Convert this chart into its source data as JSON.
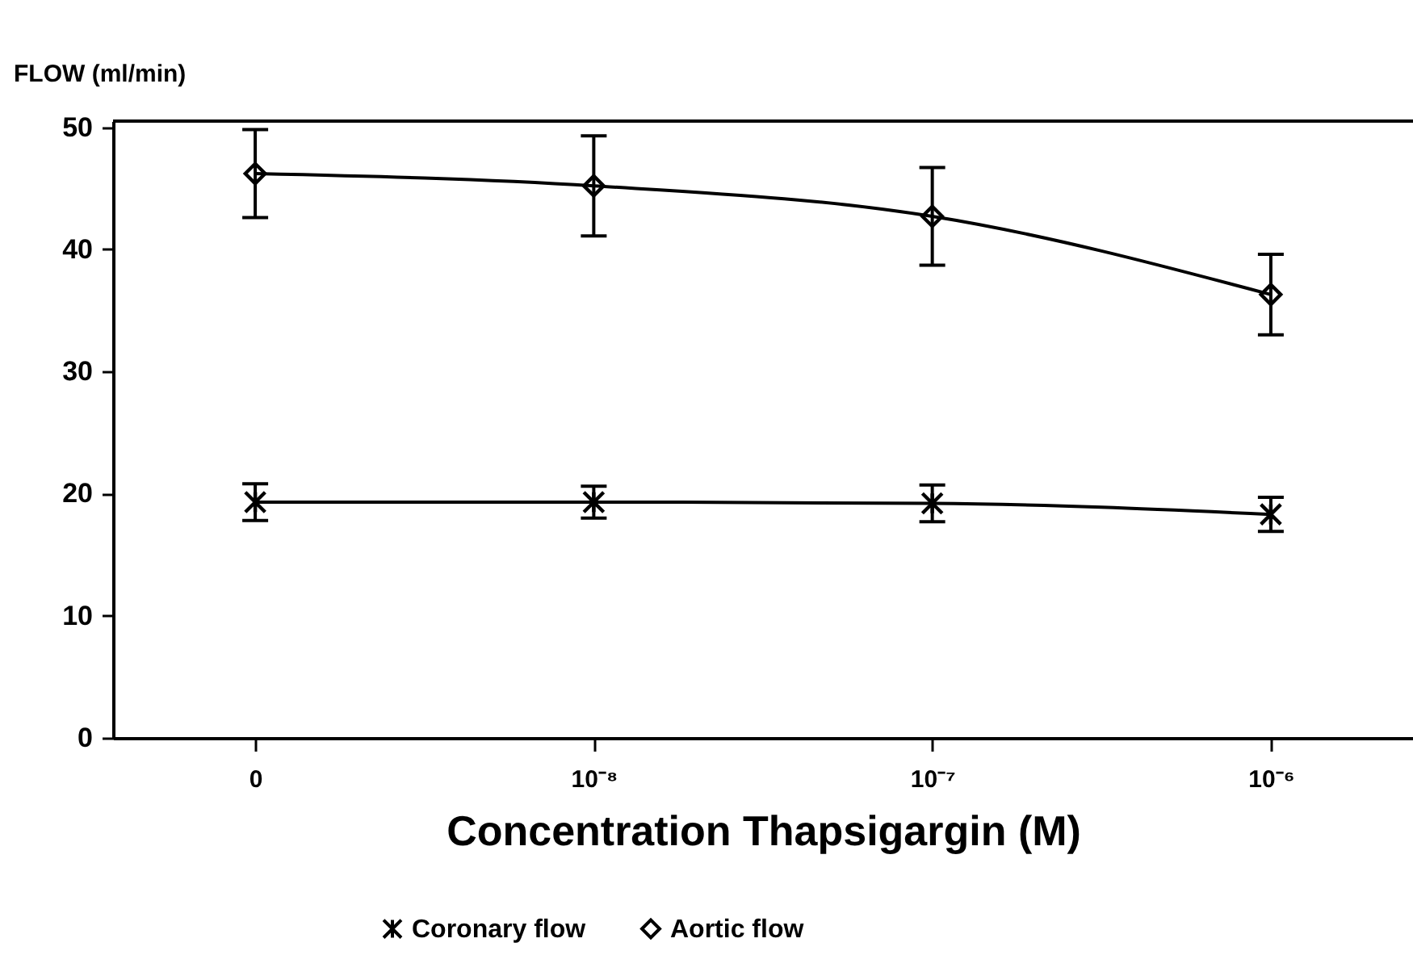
{
  "chart_data": {
    "type": "line",
    "xlabel": "Concentration Thapsigargin (M)",
    "ylabel": "FLOW (ml/min)",
    "categories": [
      "0",
      "10⁻⁸",
      "10⁻⁷",
      "10⁻⁶"
    ],
    "series": [
      {
        "name": "Coronary flow",
        "color": "#000000",
        "marker": "cross",
        "values": [
          19.3,
          19.3,
          19.2,
          18.3
        ],
        "errors": [
          1.5,
          1.3,
          1.5,
          1.4
        ]
      },
      {
        "name": "Aortic flow",
        "color": "#000000",
        "marker": "diamond",
        "values": [
          46.2,
          45.2,
          42.7,
          36.3
        ],
        "errors": [
          3.6,
          4.1,
          4,
          3.3
        ]
      }
    ],
    "ylim": [
      0,
      50.5
    ],
    "yticks": [
      0,
      10,
      20,
      30,
      40,
      50
    ],
    "grid": false,
    "legend": "bottom",
    "line_style": "solid"
  }
}
